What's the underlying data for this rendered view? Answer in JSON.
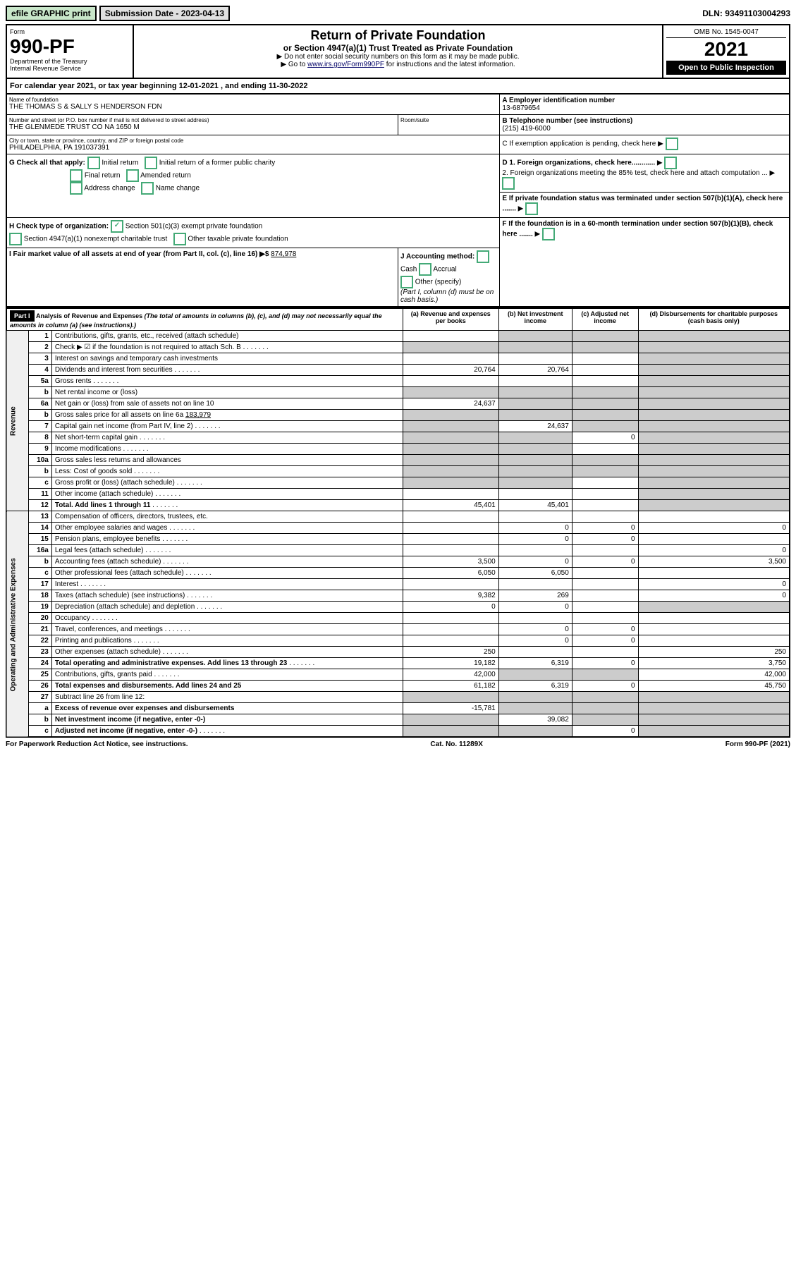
{
  "topbar": {
    "efile": "efile GRAPHIC print",
    "subdate_label": "Submission Date - ",
    "subdate": "2023-04-13",
    "dln_label": "DLN: ",
    "dln": "93491103004293"
  },
  "header": {
    "form_label": "Form",
    "form_num": "990-PF",
    "dept": "Department of the Treasury",
    "irs": "Internal Revenue Service",
    "title": "Return of Private Foundation",
    "subtitle": "or Section 4947(a)(1) Trust Treated as Private Foundation",
    "instr1": "▶ Do not enter social security numbers on this form as it may be made public.",
    "instr2_pre": "▶ Go to ",
    "instr2_link": "www.irs.gov/Form990PF",
    "instr2_post": " for instructions and the latest information.",
    "omb": "OMB No. 1545-0047",
    "year": "2021",
    "open": "Open to Public Inspection"
  },
  "cal_year": {
    "text1": "For calendar year 2021, or tax year beginning ",
    "begin": "12-01-2021",
    "text2": " , and ending ",
    "end": "11-30-2022"
  },
  "info": {
    "name_label": "Name of foundation",
    "name": "THE THOMAS S & SALLY S HENDERSON FDN",
    "addr_label": "Number and street (or P.O. box number if mail is not delivered to street address)",
    "addr": "THE GLENMEDE TRUST CO NA 1650 M",
    "room_label": "Room/suite",
    "city_label": "City or town, state or province, country, and ZIP or foreign postal code",
    "city": "PHILADELPHIA, PA  191037391",
    "ein_label": "A Employer identification number",
    "ein": "13-6879654",
    "phone_label": "B Telephone number (see instructions)",
    "phone": "(215) 419-6000",
    "c_label": "C If exemption application is pending, check here",
    "d1_label": "D 1. Foreign organizations, check here............",
    "d2_label": "2. Foreign organizations meeting the 85% test, check here and attach computation ...",
    "e_label": "E If private foundation status was terminated under section 507(b)(1)(A), check here .......",
    "f_label": "F If the foundation is in a 60-month termination under section 507(b)(1)(B), check here .......",
    "g_label": "G Check all that apply:",
    "g_items": [
      "Initial return",
      "Initial return of a former public charity",
      "Final return",
      "Amended return",
      "Address change",
      "Name change"
    ],
    "h_label": "H Check type of organization:",
    "h_items": [
      "Section 501(c)(3) exempt private foundation",
      "Section 4947(a)(1) nonexempt charitable trust",
      "Other taxable private foundation"
    ],
    "i_label": "I Fair market value of all assets at end of year (from Part II, col. (c), line 16) ▶$",
    "i_val": "874,978",
    "j_label": "J Accounting method:",
    "j_items": [
      "Cash",
      "Accrual",
      "Other (specify)"
    ],
    "j_note": "(Part I, column (d) must be on cash basis.)"
  },
  "part1": {
    "label": "Part I",
    "title": "Analysis of Revenue and Expenses",
    "subtitle": "(The total of amounts in columns (b), (c), and (d) may not necessarily equal the amounts in column (a) (see instructions).)",
    "cols": {
      "a": "(a) Revenue and expenses per books",
      "b": "(b) Net investment income",
      "c": "(c) Adjusted net income",
      "d": "(d) Disbursements for charitable purposes (cash basis only)"
    }
  },
  "sections": {
    "revenue": "Revenue",
    "expenses": "Operating and Administrative Expenses"
  },
  "rows": [
    {
      "n": "1",
      "t": "Contributions, gifts, grants, etc., received (attach schedule)",
      "a": "",
      "b": "",
      "c": "",
      "d": "",
      "db": true,
      "dc": true,
      "dd": true
    },
    {
      "n": "2",
      "t": "Check ▶ ☑ if the foundation is not required to attach Sch. B",
      "a": "",
      "b": "",
      "c": "",
      "d": "",
      "da": true,
      "db": true,
      "dc": true,
      "dd": true,
      "dots": true
    },
    {
      "n": "3",
      "t": "Interest on savings and temporary cash investments",
      "a": "",
      "b": "",
      "c": "",
      "d": "",
      "dd": true
    },
    {
      "n": "4",
      "t": "Dividends and interest from securities",
      "a": "20,764",
      "b": "20,764",
      "c": "",
      "d": "",
      "dots": true,
      "dd": true
    },
    {
      "n": "5a",
      "t": "Gross rents",
      "a": "",
      "b": "",
      "c": "",
      "d": "",
      "dots": true,
      "dd": true
    },
    {
      "n": "b",
      "t": "Net rental income or (loss)",
      "a": "",
      "b": "",
      "c": "",
      "d": "",
      "da": true,
      "db": true,
      "dc": true,
      "dd": true
    },
    {
      "n": "6a",
      "t": "Net gain or (loss) from sale of assets not on line 10",
      "a": "24,637",
      "b": "",
      "c": "",
      "d": "",
      "db": true,
      "dc": true,
      "dd": true
    },
    {
      "n": "b",
      "t": "Gross sales price for all assets on line 6a",
      "ext": "183,979",
      "a": "",
      "b": "",
      "c": "",
      "d": "",
      "da": true,
      "db": true,
      "dc": true,
      "dd": true
    },
    {
      "n": "7",
      "t": "Capital gain net income (from Part IV, line 2)",
      "a": "",
      "b": "24,637",
      "c": "",
      "d": "",
      "dots": true,
      "da": true,
      "dc": true,
      "dd": true
    },
    {
      "n": "8",
      "t": "Net short-term capital gain",
      "a": "",
      "b": "",
      "c": "0",
      "d": "",
      "dots": true,
      "da": true,
      "db": true,
      "dd": true
    },
    {
      "n": "9",
      "t": "Income modifications",
      "a": "",
      "b": "",
      "c": "",
      "d": "",
      "dots": true,
      "da": true,
      "db": true,
      "dd": true
    },
    {
      "n": "10a",
      "t": "Gross sales less returns and allowances",
      "a": "",
      "b": "",
      "c": "",
      "d": "",
      "da": true,
      "db": true,
      "dc": true,
      "dd": true
    },
    {
      "n": "b",
      "t": "Less: Cost of goods sold",
      "a": "",
      "b": "",
      "c": "",
      "d": "",
      "dots": true,
      "da": true,
      "db": true,
      "dc": true,
      "dd": true
    },
    {
      "n": "c",
      "t": "Gross profit or (loss) (attach schedule)",
      "a": "",
      "b": "",
      "c": "",
      "d": "",
      "dots": true,
      "da": true,
      "db": true,
      "dd": true
    },
    {
      "n": "11",
      "t": "Other income (attach schedule)",
      "a": "",
      "b": "",
      "c": "",
      "d": "",
      "dots": true,
      "dd": true
    },
    {
      "n": "12",
      "t": "Total. Add lines 1 through 11",
      "a": "45,401",
      "b": "45,401",
      "c": "",
      "d": "",
      "dots": true,
      "bold": true,
      "dd": true
    }
  ],
  "exp_rows": [
    {
      "n": "13",
      "t": "Compensation of officers, directors, trustees, etc.",
      "a": "",
      "b": "",
      "c": "",
      "d": ""
    },
    {
      "n": "14",
      "t": "Other employee salaries and wages",
      "a": "",
      "b": "0",
      "c": "0",
      "d": "0",
      "dots": true
    },
    {
      "n": "15",
      "t": "Pension plans, employee benefits",
      "a": "",
      "b": "0",
      "c": "0",
      "d": "",
      "dots": true
    },
    {
      "n": "16a",
      "t": "Legal fees (attach schedule)",
      "a": "",
      "b": "",
      "c": "",
      "d": "0",
      "dots": true
    },
    {
      "n": "b",
      "t": "Accounting fees (attach schedule)",
      "a": "3,500",
      "b": "0",
      "c": "0",
      "d": "3,500",
      "dots": true
    },
    {
      "n": "c",
      "t": "Other professional fees (attach schedule)",
      "a": "6,050",
      "b": "6,050",
      "c": "",
      "d": "",
      "dots": true
    },
    {
      "n": "17",
      "t": "Interest",
      "a": "",
      "b": "",
      "c": "",
      "d": "0",
      "dots": true
    },
    {
      "n": "18",
      "t": "Taxes (attach schedule) (see instructions)",
      "a": "9,382",
      "b": "269",
      "c": "",
      "d": "0",
      "dots": true
    },
    {
      "n": "19",
      "t": "Depreciation (attach schedule) and depletion",
      "a": "0",
      "b": "0",
      "c": "",
      "d": "",
      "dots": true,
      "dd": true
    },
    {
      "n": "20",
      "t": "Occupancy",
      "a": "",
      "b": "",
      "c": "",
      "d": "",
      "dots": true
    },
    {
      "n": "21",
      "t": "Travel, conferences, and meetings",
      "a": "",
      "b": "0",
      "c": "0",
      "d": "",
      "dots": true
    },
    {
      "n": "22",
      "t": "Printing and publications",
      "a": "",
      "b": "0",
      "c": "0",
      "d": "",
      "dots": true
    },
    {
      "n": "23",
      "t": "Other expenses (attach schedule)",
      "a": "250",
      "b": "",
      "c": "",
      "d": "250",
      "dots": true
    },
    {
      "n": "24",
      "t": "Total operating and administrative expenses. Add lines 13 through 23",
      "a": "19,182",
      "b": "6,319",
      "c": "0",
      "d": "3,750",
      "dots": true,
      "bold": true
    },
    {
      "n": "25",
      "t": "Contributions, gifts, grants paid",
      "a": "42,000",
      "b": "",
      "c": "",
      "d": "42,000",
      "dots": true,
      "db": true,
      "dc": true
    },
    {
      "n": "26",
      "t": "Total expenses and disbursements. Add lines 24 and 25",
      "a": "61,182",
      "b": "6,319",
      "c": "0",
      "d": "45,750",
      "bold": true
    },
    {
      "n": "27",
      "t": "Subtract line 26 from line 12:",
      "a": "",
      "b": "",
      "c": "",
      "d": "",
      "da": true,
      "db": true,
      "dc": true,
      "dd": true
    },
    {
      "n": "a",
      "t": "Excess of revenue over expenses and disbursements",
      "a": "-15,781",
      "b": "",
      "c": "",
      "d": "",
      "bold": true,
      "db": true,
      "dc": true,
      "dd": true
    },
    {
      "n": "b",
      "t": "Net investment income (if negative, enter -0-)",
      "a": "",
      "b": "39,082",
      "c": "",
      "d": "",
      "bold": true,
      "da": true,
      "dc": true,
      "dd": true
    },
    {
      "n": "c",
      "t": "Adjusted net income (if negative, enter -0-)",
      "a": "",
      "b": "",
      "c": "0",
      "d": "",
      "bold": true,
      "dots": true,
      "da": true,
      "db": true,
      "dd": true
    }
  ],
  "footer": {
    "left": "For Paperwork Reduction Act Notice, see instructions.",
    "mid": "Cat. No. 11289X",
    "right": "Form 990-PF (2021)"
  }
}
